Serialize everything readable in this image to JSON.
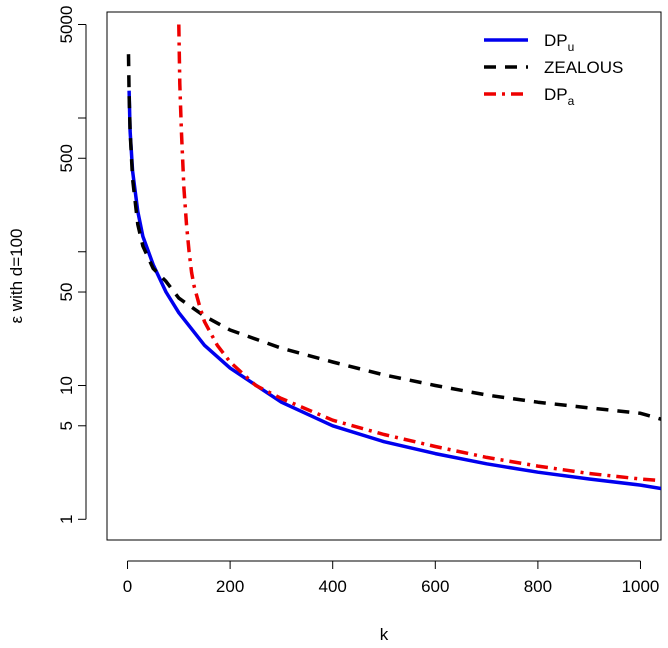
{
  "chart_data": {
    "type": "line",
    "xlabel": "k",
    "ylabel": "ε with d=100",
    "xlim": [
      -40,
      1040
    ],
    "ylim": [
      0.7,
      6200
    ],
    "y_scale": "log",
    "x_ticks": [
      0,
      200,
      400,
      600,
      800,
      1000
    ],
    "x_tick_labels": [
      "0",
      "200",
      "400",
      "600",
      "800",
      "1000"
    ],
    "y_ticks": [
      1,
      5,
      10,
      50,
      500,
      5000
    ],
    "y_tick_labels": [
      "1",
      "5",
      "10",
      "50",
      "500",
      "5000"
    ],
    "y_minor_ticks": [
      100,
      1000
    ],
    "grid": false,
    "legend_position": "top-right",
    "series": [
      {
        "name": "DP",
        "name_sub": "u",
        "color": "#0000ee",
        "dash": "solid",
        "x": [
          3,
          5,
          10,
          20,
          30,
          50,
          75,
          100,
          150,
          200,
          300,
          400,
          500,
          600,
          700,
          800,
          900,
          1000,
          1040
        ],
        "y": [
          1600,
          800,
          400,
          200,
          130,
          80,
          50,
          35,
          20,
          13.5,
          7.5,
          5.0,
          3.8,
          3.1,
          2.6,
          2.25,
          2.0,
          1.8,
          1.7
        ]
      },
      {
        "name": "ZEALOUS",
        "color": "#000000",
        "dash": "dashed",
        "x": [
          2,
          3,
          5,
          10,
          20,
          30,
          50,
          75,
          100,
          150,
          200,
          300,
          400,
          500,
          600,
          700,
          800,
          900,
          1000,
          1040
        ],
        "y": [
          3000,
          1500,
          800,
          350,
          160,
          110,
          75,
          60,
          45,
          33,
          26,
          19,
          15,
          12,
          10,
          8.5,
          7.5,
          6.8,
          6.2,
          5.6
        ]
      },
      {
        "name": "DP",
        "name_sub": "a",
        "color": "#ee0000",
        "dash": "dashdot",
        "x": [
          100,
          102,
          105,
          110,
          115,
          120,
          125,
          130,
          140,
          150,
          175,
          200,
          250,
          300,
          400,
          500,
          600,
          700,
          800,
          900,
          1000,
          1040
        ],
        "y": [
          5000,
          1800,
          800,
          300,
          160,
          100,
          70,
          55,
          40,
          30,
          20,
          15,
          10,
          8,
          5.5,
          4.3,
          3.5,
          2.9,
          2.5,
          2.2,
          2.0,
          1.95
        ]
      }
    ]
  }
}
